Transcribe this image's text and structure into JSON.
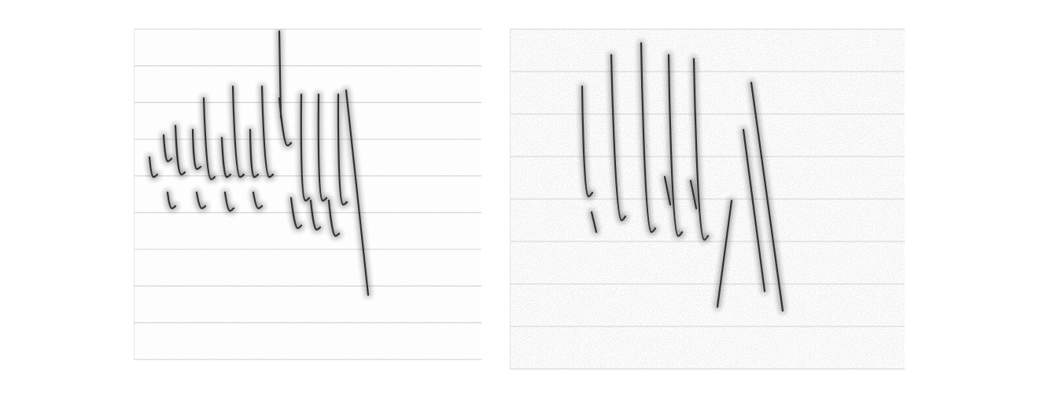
{
  "chart_data": [
    {
      "type": "spectrogram",
      "x": [
        0.1,
        0.125,
        0.15,
        null,
        0.19,
        0.215,
        0.24,
        null,
        0.215,
        0.24,
        0.265,
        null,
        0.265,
        0.3,
        0.325,
        null,
        0.375,
        0.4,
        0.425,
        null,
        0.4,
        0.43,
        0.455,
        null,
        0.445,
        0.49,
        0.515,
        null,
        0.56,
        0.59,
        0.615,
        null,
        0.58,
        0.61,
        0.635,
        null,
        0.63,
        0.675,
        0.7,
        null,
        0.74,
        0.765,
        0.79,
        null,
        0.76,
        0.79,
        0.815,
        null,
        0.815,
        0.86,
        0.885,
        null,
        0.925,
        0.935,
        null,
        0.925,
        0.975,
        1.0,
        null,
        1.0,
        1.04,
        1.065,
        null,
        1.065,
        1.09,
        1.115,
        null,
        1.125,
        1.16,
        1.185,
        null,
        1.175,
        1.2,
        1.225,
        null,
        1.24,
        1.28,
        1.305,
        null,
        1.3,
        1.33,
        1.355,
        null,
        1.35,
        1.49
      ],
      "values": [
        6.51,
        5.97,
        6.04,
        null,
        7.11,
        6.4,
        6.47,
        null,
        5.55,
        5.12,
        5.18,
        null,
        7.37,
        6.04,
        6.1,
        null,
        7.26,
        6.19,
        6.25,
        null,
        5.55,
        5.12,
        5.18,
        null,
        8.12,
        5.91,
        5.97,
        null,
        7.04,
        5.97,
        6.04,
        null,
        5.55,
        5.05,
        5.12,
        null,
        8.44,
        5.97,
        6.04,
        null,
        7.26,
        5.97,
        6.04,
        null,
        5.55,
        5.12,
        5.18,
        null,
        8.44,
        5.97,
        6.04,
        null,
        9.94,
        7.58,
        null,
        8.12,
        6.83,
        6.9,
        null,
        5.4,
        4.58,
        4.65,
        null,
        8.22,
        5.33,
        5.4,
        null,
        5.33,
        4.54,
        4.6,
        null,
        8.22,
        5.33,
        5.4,
        null,
        5.33,
        4.37,
        4.43,
        null,
        8.22,
        5.22,
        5.29,
        null,
        8.33,
        2.76
      ],
      "xlim": [
        0,
        2.21
      ],
      "ylim": [
        1,
        10
      ],
      "yticks": [
        1,
        2,
        3,
        4,
        5,
        6,
        7,
        8,
        9,
        10
      ],
      "grid": true,
      "tick_labels": false,
      "color": "#333333"
    },
    {
      "type": "spectrogram",
      "x": [
        0.46,
        0.5,
        0.525,
        null,
        0.52,
        0.55,
        null,
        0.645,
        0.71,
        0.735,
        null,
        0.835,
        0.9,
        0.925,
        null,
        0.985,
        1.02,
        null,
        1.01,
        1.07,
        1.095,
        null,
        1.15,
        1.185,
        null,
        1.17,
        1.235,
        1.26,
        null,
        1.41,
        1.32,
        null,
        1.485,
        1.62,
        null,
        1.535,
        1.735
      ],
      "values": [
        8.65,
        6.06,
        6.15,
        null,
        5.69,
        5.22,
        null,
        9.39,
        5.5,
        5.59,
        null,
        9.67,
        5.22,
        5.31,
        null,
        6.52,
        5.87,
        null,
        9.39,
        5.13,
        5.22,
        null,
        6.43,
        5.78,
        null,
        9.3,
        5.04,
        5.13,
        null,
        5.96,
        3.46,
        null,
        7.63,
        3.83,
        null,
        8.74,
        3.37
      ],
      "xlim": [
        0,
        2.51
      ],
      "ylim": [
        2,
        10
      ],
      "yticks": [
        2,
        3,
        4,
        5,
        6,
        7,
        8,
        9,
        10
      ],
      "grid": true,
      "tick_labels": false,
      "color": "#333333"
    }
  ]
}
